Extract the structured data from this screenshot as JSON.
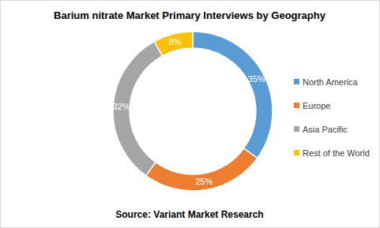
{
  "chart_data": {
    "type": "donut",
    "title": "Barium nitrate Market Primary Interviews by Geography",
    "categories": [
      "North America",
      "Europe",
      "Asia Pacific",
      "Rest of the World"
    ],
    "values": [
      35,
      25,
      32,
      8
    ],
    "value_labels": [
      "35%",
      "25%",
      "32%",
      "8%"
    ],
    "colors": [
      "#5b9bd5",
      "#ed7d31",
      "#a5a5a5",
      "#ffc000"
    ],
    "data_labels": true,
    "legend": "right",
    "annotations": [
      "Source: Variant Market Research"
    ]
  }
}
